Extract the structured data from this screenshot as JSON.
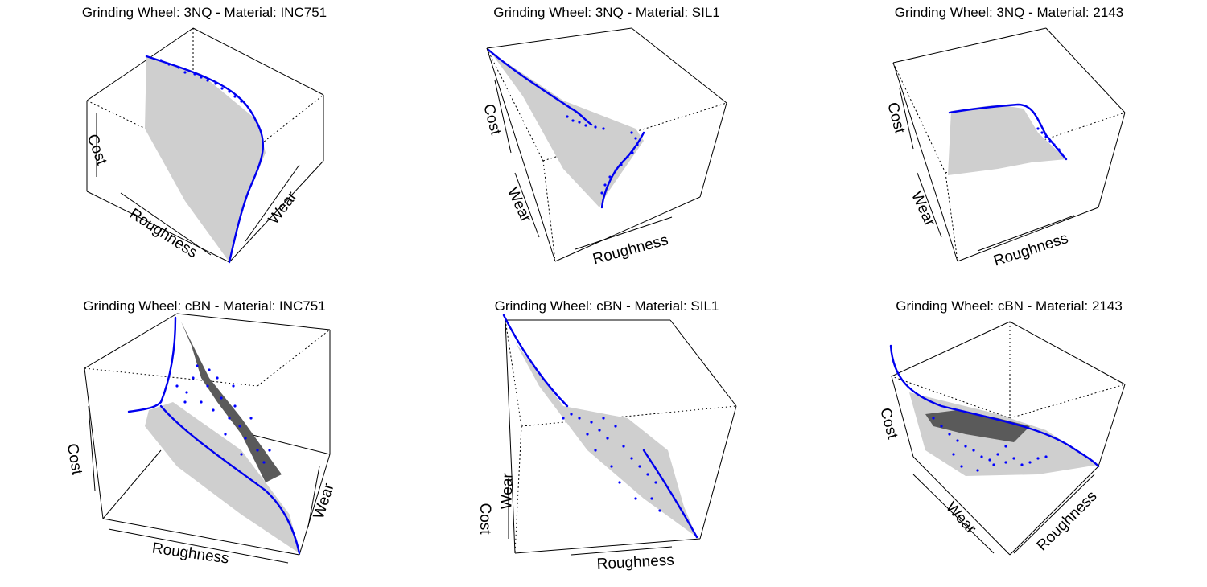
{
  "colors": {
    "frontier": "#0000ff",
    "surface_light": "#cfcfcf",
    "surface_dark": "#5a5a5a",
    "box": "#000000"
  },
  "chart_data": [
    {
      "type": "scatter",
      "title": "Grinding Wheel: 3NQ - Material: INC751",
      "xlabel": "Roughness",
      "ylabel": "Wear",
      "zlabel": "Cost"
    },
    {
      "type": "scatter",
      "title": "Grinding Wheel: 3NQ - Material: SIL1",
      "xlabel": "Roughness",
      "ylabel": "Wear",
      "zlabel": "Cost"
    },
    {
      "type": "scatter",
      "title": "Grinding Wheel: 3NQ - Material: 2143",
      "xlabel": "Roughness",
      "ylabel": "Wear",
      "zlabel": "Cost"
    },
    {
      "type": "scatter",
      "title": "Grinding Wheel: cBN - Material: INC751",
      "xlabel": "Roughness",
      "ylabel": "Wear",
      "zlabel": "Cost"
    },
    {
      "type": "scatter",
      "title": "Grinding Wheel: cBN - Material: SIL1",
      "xlabel": "Roughness",
      "ylabel": "Wear",
      "zlabel": "Cost"
    },
    {
      "type": "scatter",
      "title": "Grinding Wheel: cBN - Material: 2143",
      "xlabel": "Roughness",
      "ylabel": "Wear",
      "zlabel": "Cost"
    }
  ]
}
